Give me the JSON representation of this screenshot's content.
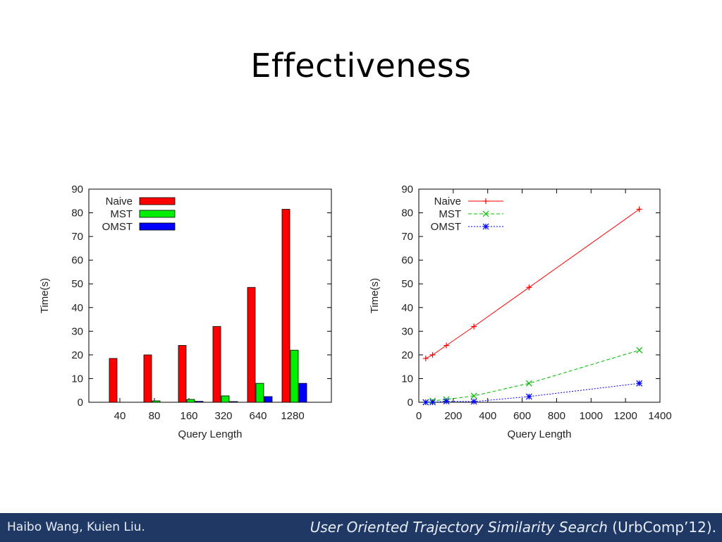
{
  "slide": {
    "title": "Effectiveness",
    "footer_authors": "Haibo Wang, Kuien Liu.",
    "footer_ref_italic": "User Oriented Trajectory Similarity Search",
    "footer_ref_plain": " (UrbComp’12)."
  },
  "chart_data": [
    {
      "type": "bar",
      "categories": [
        "40",
        "80",
        "160",
        "320",
        "640",
        "1280"
      ],
      "series": [
        {
          "name": "Naive",
          "values": [
            18.5,
            20,
            24,
            32,
            48.5,
            81.5
          ],
          "color": "#ff0000"
        },
        {
          "name": "MST",
          "values": [
            0,
            0.6,
            1.2,
            2.7,
            8,
            22
          ],
          "color": "#00ee00"
        },
        {
          "name": "OMST",
          "values": [
            0,
            0,
            0.4,
            0.3,
            2.4,
            8
          ],
          "color": "#0000ff"
        }
      ],
      "xlabel": "Query Length",
      "ylabel": "Time(s)",
      "ylim": [
        0,
        90
      ],
      "yticks": [
        0,
        10,
        20,
        30,
        40,
        50,
        60,
        70,
        80,
        90
      ],
      "legend": "top-left"
    },
    {
      "type": "line",
      "series": [
        {
          "name": "Naive",
          "x": [
            40,
            80,
            160,
            320,
            640,
            1280
          ],
          "y": [
            18.5,
            20,
            24,
            32,
            48.5,
            81.5
          ],
          "color": "#ff0000",
          "marker": "+",
          "dash": "solid"
        },
        {
          "name": "MST",
          "x": [
            40,
            80,
            160,
            320,
            640,
            1280
          ],
          "y": [
            0,
            0.6,
            1.2,
            2.7,
            8,
            22
          ],
          "color": "#00bb00",
          "marker": "x",
          "dash": "dashed"
        },
        {
          "name": "OMST",
          "x": [
            40,
            80,
            160,
            320,
            640,
            1280
          ],
          "y": [
            0,
            0,
            0.4,
            0.3,
            2.4,
            8
          ],
          "color": "#0000ff",
          "marker": "*",
          "dash": "dotted"
        }
      ],
      "xlabel": "Query Length",
      "ylabel": "Time(s)",
      "xlim": [
        0,
        1400
      ],
      "ylim": [
        0,
        90
      ],
      "xticks": [
        0,
        200,
        400,
        600,
        800,
        1000,
        1200,
        1400
      ],
      "yticks": [
        0,
        10,
        20,
        30,
        40,
        50,
        60,
        70,
        80,
        90
      ],
      "legend": "top-left"
    }
  ]
}
